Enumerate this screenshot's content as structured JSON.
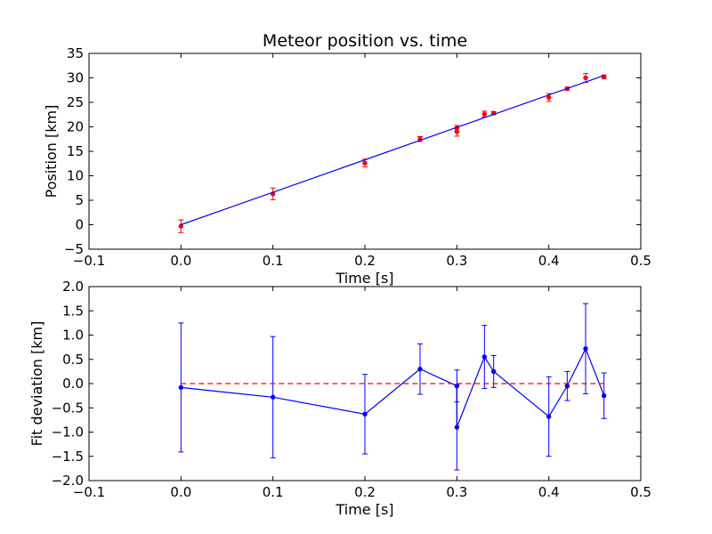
{
  "chart_data": [
    {
      "type": "scatter",
      "title": "Meteor position vs. time",
      "xlabel": "Time [s]",
      "ylabel": "Position [km]",
      "xlim": [
        -0.1,
        0.5
      ],
      "ylim": [
        -5,
        35
      ],
      "xticks": [
        -0.1,
        0.0,
        0.1,
        0.2,
        0.3,
        0.4,
        0.5
      ],
      "xtick_labels": [
        "−0.1",
        "0.0",
        "0.1",
        "0.2",
        "0.3",
        "0.4",
        "0.5"
      ],
      "yticks": [
        -5,
        0,
        5,
        10,
        15,
        20,
        25,
        30,
        35
      ],
      "ytick_labels": [
        "−5",
        "0",
        "5",
        "10",
        "15",
        "20",
        "25",
        "30",
        "35"
      ],
      "grid": false,
      "series": [
        {
          "type": "scatter-errorbar",
          "color": "#ff0000",
          "x": [
            0.0,
            0.1,
            0.2,
            0.26,
            0.3,
            0.3,
            0.33,
            0.34,
            0.4,
            0.42,
            0.44,
            0.46
          ],
          "y": [
            -0.3,
            6.3,
            12.6,
            17.5,
            19.7,
            19.0,
            22.6,
            22.8,
            26.0,
            27.8,
            30.0,
            30.2
          ],
          "yerr": [
            1.3,
            1.2,
            0.8,
            0.5,
            0.6,
            0.9,
            0.6,
            0.3,
            0.8,
            0.3,
            0.9,
            0.4
          ]
        },
        {
          "type": "line",
          "color": "#0000ff",
          "x": [
            0.0,
            0.46
          ],
          "y": [
            0.0,
            30.5
          ]
        }
      ]
    },
    {
      "type": "line",
      "title": "",
      "xlabel": "Time [s]",
      "ylabel": "Fit deviation [km]",
      "xlim": [
        -0.1,
        0.5
      ],
      "ylim": [
        -2.0,
        2.0
      ],
      "xticks": [
        -0.1,
        0.0,
        0.1,
        0.2,
        0.3,
        0.4,
        0.5
      ],
      "xtick_labels": [
        "−0.1",
        "0.0",
        "0.1",
        "0.2",
        "0.3",
        "0.4",
        "0.5"
      ],
      "yticks": [
        -2.0,
        -1.5,
        -1.0,
        -0.5,
        0.0,
        0.5,
        1.0,
        1.5,
        2.0
      ],
      "ytick_labels": [
        "−2.0",
        "−1.5",
        "−1.0",
        "−0.5",
        "0.0",
        "0.5",
        "1.0",
        "1.5",
        "2.0"
      ],
      "grid": false,
      "series": [
        {
          "type": "line-errorbar",
          "color": "#0000ff",
          "x": [
            0.0,
            0.1,
            0.2,
            0.26,
            0.3,
            0.3,
            0.33,
            0.34,
            0.4,
            0.42,
            0.44,
            0.46
          ],
          "y": [
            -0.08,
            -0.28,
            -0.63,
            0.3,
            -0.05,
            -0.9,
            0.55,
            0.25,
            -0.68,
            -0.05,
            0.72,
            -0.25
          ],
          "yerr": [
            1.33,
            1.25,
            0.82,
            0.52,
            0.33,
            0.88,
            0.65,
            0.33,
            0.82,
            0.3,
            0.93,
            0.47
          ]
        },
        {
          "type": "reference-line",
          "color": "#ff0000",
          "style": "dashed",
          "x": [
            0.0,
            0.46
          ],
          "y": [
            0.0,
            0.0
          ]
        }
      ]
    }
  ]
}
